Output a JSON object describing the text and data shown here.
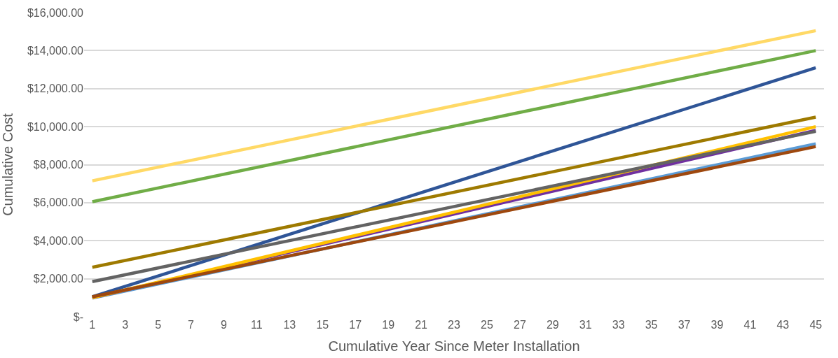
{
  "chart_data": {
    "type": "line",
    "xlabel": "Cumulative Year Since Meter Installation",
    "ylabel": "Cumulative Cost",
    "x": [
      1,
      45
    ],
    "xlim": [
      0.5,
      45.5
    ],
    "xticks": [
      1,
      3,
      5,
      7,
      9,
      11,
      13,
      15,
      17,
      19,
      21,
      23,
      25,
      27,
      29,
      31,
      33,
      35,
      37,
      39,
      41,
      43,
      45
    ],
    "ylim": [
      0,
      16000
    ],
    "yticks": [
      {
        "value": 0,
        "label": "$-"
      },
      {
        "value": 2000,
        "label": "$2,000.00"
      },
      {
        "value": 4000,
        "label": "$4,000.00"
      },
      {
        "value": 6000,
        "label": "$6,000.00"
      },
      {
        "value": 8000,
        "label": "$8,000.00"
      },
      {
        "value": 10000,
        "label": "$10,000.00"
      },
      {
        "value": 12000,
        "label": "$12,000.00"
      },
      {
        "value": 14000,
        "label": "$14,000.00"
      },
      {
        "value": 16000,
        "label": "$16,000.00"
      }
    ],
    "grid": "y",
    "marker": "none",
    "line_style": "solid",
    "series": [
      {
        "color": "#5b9bd5",
        "values": [
          980,
          9100
        ]
      },
      {
        "color": "#7030a0",
        "values": [
          1000,
          9800
        ]
      },
      {
        "color": "#ffd966",
        "values": [
          7150,
          15050
        ]
      },
      {
        "color": "#70ad47",
        "values": [
          6050,
          14000
        ]
      },
      {
        "color": "#2f5597",
        "values": [
          1050,
          13100
        ]
      },
      {
        "color": "#9e7a00",
        "values": [
          2600,
          10500
        ]
      },
      {
        "color": "#ffc000",
        "values": [
          1000,
          10000
        ]
      },
      {
        "color": "#636363",
        "values": [
          1850,
          9750
        ]
      },
      {
        "color": "#9e480e",
        "values": [
          1050,
          8950
        ]
      }
    ]
  }
}
